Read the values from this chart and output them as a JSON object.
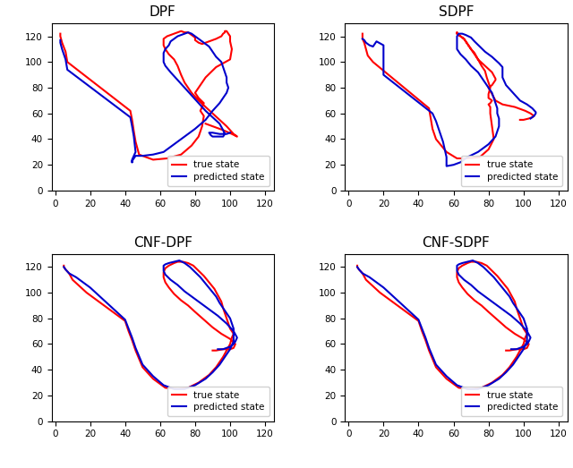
{
  "titles": [
    "DPF",
    "SDPF",
    "CNF-DPF",
    "CNF-SDPF"
  ],
  "true_color": "#ff0000",
  "pred_color": "#0000cc",
  "true_lw": 1.5,
  "pred_lw": 1.5,
  "xlim": [
    -2,
    125
  ],
  "ylim": [
    0,
    130
  ],
  "xticks": [
    0,
    20,
    40,
    60,
    80,
    100,
    120
  ],
  "yticks": [
    0,
    20,
    40,
    60,
    80,
    100,
    120
  ],
  "legend_labels": [
    "true state",
    "predicted state"
  ],
  "true_x_all": [
    [
      3,
      3,
      4,
      6,
      7,
      43,
      44,
      45,
      46,
      48,
      56,
      64,
      72,
      78,
      82,
      84,
      85,
      83,
      84,
      85,
      82,
      80,
      82,
      86,
      92,
      100,
      101,
      100,
      100,
      99,
      98,
      97,
      97,
      96,
      95,
      92,
      88,
      84,
      82,
      80,
      80,
      78,
      76,
      74,
      72,
      70,
      68,
      66,
      64,
      62,
      62,
      62,
      63,
      65,
      68,
      70,
      72,
      74,
      78,
      82,
      86,
      90,
      94,
      98,
      102,
      104,
      101,
      96,
      90,
      86
    ],
    [
      8,
      8,
      8,
      9,
      10,
      11,
      14,
      46,
      47,
      48,
      50,
      56,
      62,
      68,
      75,
      80,
      83,
      82,
      81,
      81,
      80,
      81,
      82,
      80,
      80,
      81,
      80,
      79,
      78,
      76,
      74,
      72,
      70,
      68,
      66,
      62,
      62,
      62,
      62,
      63,
      64,
      66,
      68,
      70,
      72,
      74,
      78,
      82,
      84,
      84,
      82,
      80,
      82,
      84,
      88,
      95,
      101,
      104,
      106,
      105,
      103,
      100,
      98
    ],
    [
      5,
      5,
      6,
      8,
      10,
      18,
      40,
      42,
      44,
      46,
      50,
      56,
      63,
      70,
      76,
      82,
      88,
      92,
      96,
      98,
      100,
      101,
      102,
      100,
      99,
      98,
      97,
      96,
      95,
      93,
      91,
      88,
      85,
      82,
      79,
      76,
      73,
      70,
      68,
      65,
      63,
      62,
      62,
      63,
      65,
      68,
      72,
      76,
      80,
      85,
      90,
      95,
      100,
      103,
      102,
      100,
      98,
      96,
      92,
      90
    ],
    [
      5,
      5,
      6,
      8,
      10,
      18,
      40,
      42,
      44,
      46,
      50,
      56,
      63,
      70,
      76,
      82,
      88,
      92,
      96,
      98,
      100,
      101,
      102,
      100,
      99,
      98,
      97,
      96,
      95,
      93,
      91,
      88,
      85,
      82,
      79,
      76,
      73,
      70,
      68,
      65,
      63,
      62,
      62,
      63,
      65,
      68,
      72,
      76,
      80,
      85,
      90,
      95,
      100,
      103,
      102,
      100,
      98,
      96,
      92,
      90
    ]
  ],
  "true_y_all": [
    [
      122,
      120,
      115,
      108,
      100,
      62,
      55,
      46,
      38,
      28,
      24,
      25,
      28,
      35,
      42,
      50,
      58,
      62,
      65,
      68,
      72,
      76,
      80,
      88,
      96,
      102,
      110,
      116,
      120,
      122,
      124,
      124,
      123,
      122,
      120,
      118,
      116,
      114,
      115,
      117,
      119,
      121,
      123,
      123,
      124,
      123,
      122,
      121,
      120,
      118,
      116,
      113,
      110,
      106,
      102,
      97,
      90,
      84,
      76,
      70,
      65,
      60,
      55,
      50,
      44,
      42,
      44,
      47,
      50,
      52
    ],
    [
      122,
      120,
      118,
      115,
      110,
      105,
      100,
      64,
      56,
      48,
      40,
      30,
      25,
      25,
      26,
      32,
      40,
      50,
      60,
      65,
      67,
      68,
      70,
      72,
      75,
      80,
      84,
      88,
      93,
      97,
      102,
      106,
      110,
      114,
      118,
      122,
      123,
      123,
      122,
      121,
      120,
      118,
      114,
      110,
      107,
      102,
      97,
      92,
      87,
      86,
      82,
      80,
      75,
      70,
      67,
      65,
      62,
      60,
      58,
      57,
      56,
      55,
      55
    ],
    [
      121,
      120,
      118,
      115,
      110,
      100,
      78,
      70,
      63,
      55,
      42,
      33,
      26,
      25,
      26,
      30,
      36,
      42,
      50,
      55,
      60,
      65,
      68,
      72,
      76,
      80,
      84,
      88,
      93,
      98,
      103,
      108,
      113,
      117,
      121,
      123,
      124,
      124,
      123,
      121,
      119,
      116,
      112,
      108,
      104,
      99,
      94,
      90,
      85,
      79,
      73,
      68,
      64,
      60,
      57,
      56,
      56,
      56,
      55,
      55
    ],
    [
      121,
      120,
      118,
      115,
      110,
      100,
      78,
      70,
      63,
      55,
      42,
      33,
      26,
      25,
      26,
      30,
      36,
      42,
      50,
      55,
      60,
      65,
      68,
      72,
      76,
      80,
      84,
      88,
      93,
      98,
      103,
      108,
      113,
      117,
      121,
      123,
      124,
      124,
      123,
      121,
      119,
      116,
      112,
      108,
      104,
      99,
      94,
      90,
      85,
      79,
      73,
      68,
      64,
      60,
      57,
      56,
      56,
      56,
      55,
      55
    ]
  ],
  "pred_x_all": [
    [
      3,
      3,
      4,
      6,
      7,
      43,
      44,
      45,
      46,
      44,
      44,
      44,
      44,
      45,
      46,
      50,
      56,
      62,
      68,
      74,
      80,
      86,
      90,
      94,
      96,
      98,
      99,
      98,
      98,
      97,
      96,
      95,
      92,
      90,
      88,
      84,
      80,
      78,
      76,
      74,
      72,
      70,
      68,
      66,
      65,
      63,
      62,
      62,
      62,
      63,
      66,
      70,
      74,
      78,
      82,
      86,
      90,
      94,
      96,
      97,
      96,
      94,
      92,
      90,
      89,
      88,
      90,
      94,
      98,
      100
    ],
    [
      8,
      9,
      10,
      12,
      14,
      16,
      20,
      20,
      48,
      50,
      52,
      54,
      56,
      56,
      56,
      56,
      60,
      64,
      68,
      74,
      80,
      84,
      86,
      86,
      85,
      85,
      84,
      83,
      82,
      80,
      78,
      76,
      74,
      70,
      67,
      64,
      62,
      62,
      62,
      62,
      63,
      65,
      67,
      70,
      72,
      75,
      78,
      82,
      86,
      88,
      88,
      88,
      90,
      94,
      98,
      102,
      105,
      107,
      107,
      106,
      105,
      104,
      104
    ],
    [
      5,
      6,
      8,
      12,
      16,
      20,
      40,
      42,
      44,
      46,
      50,
      56,
      62,
      68,
      74,
      80,
      86,
      90,
      94,
      97,
      100,
      102,
      102,
      102,
      101,
      100,
      98,
      96,
      94,
      92,
      89,
      86,
      83,
      80,
      77,
      74,
      71,
      68,
      65,
      63,
      62,
      62,
      62,
      63,
      66,
      70,
      74,
      78,
      83,
      88,
      93,
      98,
      102,
      104,
      103,
      102,
      100,
      98,
      96,
      93
    ],
    [
      5,
      6,
      8,
      12,
      16,
      20,
      40,
      42,
      44,
      46,
      50,
      56,
      62,
      68,
      74,
      80,
      86,
      90,
      94,
      97,
      100,
      102,
      102,
      102,
      101,
      100,
      98,
      96,
      94,
      92,
      89,
      86,
      83,
      80,
      77,
      74,
      71,
      68,
      65,
      63,
      62,
      62,
      62,
      63,
      66,
      70,
      74,
      78,
      83,
      88,
      93,
      98,
      102,
      104,
      103,
      102,
      100,
      98,
      96,
      93
    ]
  ],
  "pred_y_all": [
    [
      117,
      115,
      110,
      102,
      94,
      57,
      50,
      42,
      30,
      24,
      23,
      22,
      23,
      25,
      27,
      27,
      28,
      30,
      36,
      42,
      48,
      55,
      62,
      68,
      72,
      76,
      80,
      84,
      88,
      92,
      96,
      100,
      104,
      108,
      112,
      116,
      120,
      122,
      123,
      122,
      121,
      120,
      118,
      116,
      113,
      110,
      107,
      103,
      100,
      97,
      92,
      86,
      80,
      74,
      68,
      62,
      57,
      52,
      47,
      44,
      42,
      42,
      42,
      42,
      43,
      45,
      45,
      44,
      44,
      45
    ],
    [
      118,
      117,
      115,
      113,
      112,
      116,
      113,
      90,
      60,
      54,
      46,
      38,
      26,
      22,
      19,
      19,
      20,
      22,
      26,
      30,
      36,
      42,
      50,
      56,
      60,
      64,
      68,
      72,
      76,
      80,
      84,
      88,
      92,
      97,
      102,
      106,
      110,
      114,
      118,
      120,
      122,
      122,
      121,
      119,
      116,
      112,
      108,
      104,
      99,
      96,
      92,
      88,
      82,
      76,
      70,
      67,
      64,
      61,
      60,
      58,
      57,
      56,
      56
    ],
    [
      120,
      118,
      115,
      112,
      108,
      104,
      79,
      72,
      65,
      57,
      44,
      35,
      28,
      25,
      25,
      28,
      33,
      38,
      44,
      50,
      56,
      62,
      68,
      72,
      76,
      80,
      84,
      88,
      92,
      97,
      102,
      107,
      112,
      116,
      120,
      123,
      125,
      124,
      123,
      122,
      121,
      119,
      117,
      114,
      110,
      106,
      101,
      97,
      92,
      87,
      82,
      76,
      70,
      65,
      62,
      60,
      58,
      57,
      56,
      56
    ],
    [
      120,
      118,
      115,
      112,
      108,
      104,
      79,
      72,
      65,
      57,
      44,
      35,
      28,
      25,
      25,
      28,
      33,
      38,
      44,
      50,
      56,
      62,
      68,
      72,
      76,
      80,
      84,
      88,
      92,
      97,
      102,
      107,
      112,
      116,
      120,
      123,
      125,
      124,
      123,
      122,
      121,
      119,
      117,
      114,
      110,
      106,
      101,
      97,
      92,
      87,
      82,
      76,
      70,
      65,
      62,
      60,
      58,
      57,
      56,
      56
    ]
  ]
}
